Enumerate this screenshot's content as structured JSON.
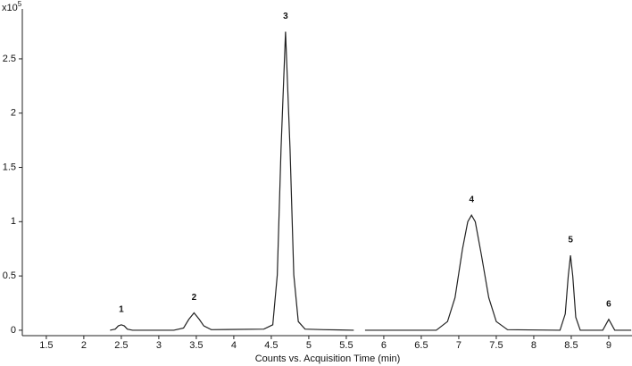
{
  "chart_data": {
    "type": "line",
    "x_label": "Counts vs. Acquisition Time (min)",
    "y_scale_label": "x10",
    "y_scale_exponent": "5",
    "series": [
      {
        "color": "#222222",
        "x": [
          2.35,
          2.42,
          2.46,
          2.5,
          2.54,
          2.58,
          2.65,
          3.2,
          3.33,
          3.4,
          3.47,
          3.54,
          3.6,
          3.7,
          4.4,
          4.52,
          4.58,
          4.63,
          4.69,
          4.75,
          4.8,
          4.86,
          4.95,
          5.2,
          5.6,
          5.68,
          5.75,
          6.7,
          6.85,
          6.95,
          7.05,
          7.12,
          7.17,
          7.22,
          7.3,
          7.4,
          7.5,
          7.65,
          8.35,
          8.42,
          8.46,
          8.49,
          8.52,
          8.56,
          8.62,
          8.92,
          8.96,
          9.0,
          9.04,
          9.08,
          9.3
        ],
        "values": [
          0,
          0.01,
          0.04,
          0.05,
          0.04,
          0.01,
          0,
          0,
          0.02,
          0.1,
          0.16,
          0.1,
          0.04,
          0.005,
          0.01,
          0.05,
          0.51,
          1.67,
          2.75,
          1.67,
          0.51,
          0.08,
          0.01,
          0.005,
          0,
          null,
          0,
          0,
          0.08,
          0.3,
          0.75,
          1.0,
          1.06,
          1.0,
          0.7,
          0.3,
          0.08,
          0.005,
          0,
          0.15,
          0.5,
          0.69,
          0.5,
          0.12,
          0,
          0,
          0.05,
          0.1,
          0.05,
          0,
          0
        ]
      }
    ],
    "annotations": [
      {
        "text": "1",
        "x": 2.5,
        "y": 0.05
      },
      {
        "text": "2",
        "x": 3.47,
        "y": 0.16
      },
      {
        "text": "3",
        "x": 4.69,
        "y": 2.75
      },
      {
        "text": "4",
        "x": 7.17,
        "y": 1.06
      },
      {
        "text": "5",
        "x": 8.49,
        "y": 0.69
      },
      {
        "text": "6",
        "x": 9.0,
        "y": 0.1
      }
    ],
    "xlim": [
      1.18,
      9.31
    ],
    "ylim": [
      -0.05,
      2.96
    ],
    "xticks": [
      1.5,
      2,
      2.5,
      3,
      3.5,
      4,
      4.5,
      5,
      5.5,
      6,
      6.5,
      7,
      7.5,
      8,
      8.5,
      9
    ],
    "yticks": [
      0,
      0.5,
      1,
      1.5,
      2,
      2.5
    ]
  }
}
